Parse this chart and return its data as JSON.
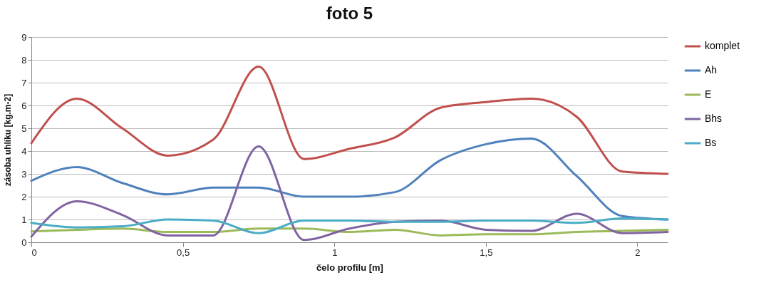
{
  "chart_data": {
    "type": "line",
    "title": "foto 5",
    "xlabel": "čelo profilu [m]",
    "ylabel": "zásoba uhlíku [kg.m-2]",
    "x": [
      0,
      0.15,
      0.3,
      0.45,
      0.6,
      0.75,
      0.9,
      1.05,
      1.2,
      1.35,
      1.5,
      1.65,
      1.8,
      1.95,
      2.1
    ],
    "series": [
      {
        "name": "komplet",
        "color": "#c0504d",
        "values": [
          4.35,
          6.3,
          5.0,
          3.8,
          4.5,
          7.7,
          3.65,
          4.1,
          4.6,
          5.9,
          6.15,
          6.3,
          5.5,
          3.1,
          3.0
        ]
      },
      {
        "name": "Ah",
        "color": "#4f81bd",
        "values": [
          2.7,
          3.3,
          2.6,
          2.1,
          2.4,
          2.4,
          2.0,
          2.0,
          2.2,
          3.6,
          4.3,
          4.55,
          2.9,
          1.15,
          1.0
        ]
      },
      {
        "name": "E",
        "color": "#9bbb59",
        "values": [
          0.48,
          0.55,
          0.6,
          0.45,
          0.45,
          0.6,
          0.6,
          0.45,
          0.55,
          0.3,
          0.35,
          0.35,
          0.45,
          0.5,
          0.55
        ]
      },
      {
        "name": "Bhs",
        "color": "#8064a2",
        "values": [
          0.25,
          1.8,
          1.2,
          0.3,
          0.3,
          4.2,
          0.1,
          0.6,
          0.9,
          0.95,
          0.55,
          0.5,
          1.25,
          0.4,
          0.45
        ]
      },
      {
        "name": "Bs",
        "color": "#4bacc6",
        "values": [
          0.85,
          0.65,
          0.7,
          1.0,
          0.95,
          0.4,
          0.95,
          0.95,
          0.9,
          0.9,
          0.95,
          0.95,
          0.85,
          1.05,
          1.0
        ]
      }
    ],
    "xlim": [
      0,
      2.1
    ],
    "xticks": [
      0,
      {
        "value": 0.5,
        "label": "0,5"
      },
      1,
      {
        "value": 1.5,
        "label": "1,5"
      },
      2
    ],
    "ylim": [
      0,
      9
    ],
    "yticks": [
      0,
      1,
      2,
      3,
      4,
      5,
      6,
      7,
      8,
      9
    ],
    "grid": "y",
    "legend": "right"
  }
}
